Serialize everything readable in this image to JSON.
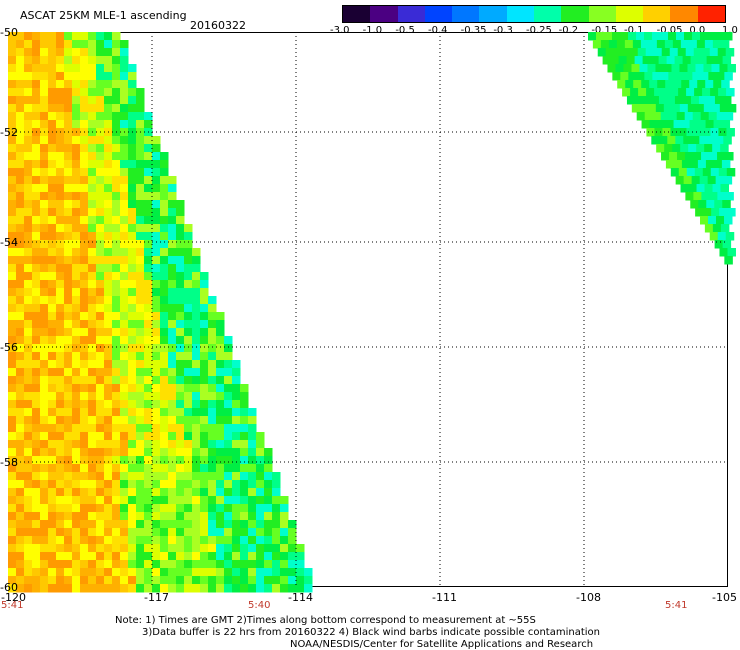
{
  "header": {
    "title": "ASCAT 25KM MLE-1 ascending",
    "date": "20160322"
  },
  "colorbar": {
    "labels": [
      "-3.0",
      "-1.0",
      "-0.5",
      "-0.4",
      "-0.35",
      "-0.3",
      "-0.25",
      "-0.2",
      "-0.15",
      "-0.1",
      "-0.05",
      "0.0",
      "1.0"
    ],
    "colors": [
      "#1a0033",
      "#4b0082",
      "#3a2bd6",
      "#0044ff",
      "#0077ff",
      "#00aaff",
      "#00e5ff",
      "#00ffaa",
      "#22ee22",
      "#88ff22",
      "#ddff00",
      "#ffd000",
      "#ff8800",
      "#ff2200"
    ]
  },
  "map": {
    "lat_labels": [
      "-50",
      "-52",
      "-54",
      "-56",
      "-58",
      "-60"
    ],
    "lon_labels": [
      "-120",
      "-117",
      "-114",
      "-111",
      "-108",
      "-105"
    ],
    "time_labels": [
      "5:41",
      "5:40",
      "5:41"
    ]
  },
  "notes": {
    "line1": "Note: 1) Times are GMT 2)Times along bottom correspond to measurement at ~55S",
    "line2": "3)Data buffer is 22 hrs from 20160322 4) Black wind barbs indicate possible contamination",
    "line3": "NOAA/NESDIS/Center for Satellite Applications and Research"
  }
}
